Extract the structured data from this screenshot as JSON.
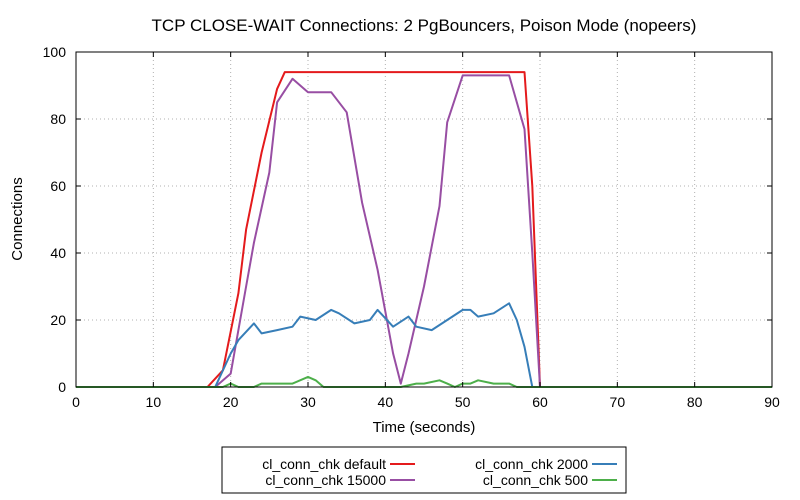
{
  "chart_data": {
    "type": "line",
    "title": "TCP CLOSE-WAIT Connections: 2 PgBouncers, Poison Mode (nopeers)",
    "xlabel": "Time (seconds)",
    "ylabel": "Connections",
    "xlim": [
      0,
      90
    ],
    "ylim": [
      0,
      100
    ],
    "xticks": [
      "0",
      "10",
      "20",
      "30",
      "40",
      "50",
      "60",
      "70",
      "80",
      "90"
    ],
    "yticks": [
      "0",
      "20",
      "40",
      "60",
      "80",
      "100"
    ],
    "grid": true,
    "legend_position": "bottom",
    "series": [
      {
        "name": "cl_conn_chk default",
        "color": "#e41a1c",
        "x": [
          0,
          17,
          19,
          21,
          22,
          24,
          26,
          27,
          58,
          59,
          60,
          90
        ],
        "y": [
          0,
          0,
          5,
          28,
          47,
          70,
          89,
          94,
          94,
          60,
          0,
          0
        ]
      },
      {
        "name": "cl_conn_chk 15000",
        "color": "#984ea3",
        "x": [
          0,
          18,
          20,
          22,
          23,
          25,
          26,
          28,
          30,
          33,
          35,
          37,
          39,
          41,
          42,
          43,
          45,
          47,
          48,
          50,
          56,
          58,
          59,
          60,
          90
        ],
        "y": [
          0,
          0,
          4,
          30,
          43,
          64,
          85,
          92,
          88,
          88,
          82,
          55,
          35,
          10,
          1,
          10,
          30,
          54,
          79,
          93,
          93,
          77,
          40,
          0,
          0
        ]
      },
      {
        "name": "cl_conn_chk 2000",
        "color": "#377eb8",
        "x": [
          0,
          18,
          20,
          21,
          23,
          24,
          26,
          28,
          29,
          31,
          33,
          34,
          36,
          38,
          39,
          41,
          43,
          44,
          46,
          48,
          50,
          51,
          52,
          54,
          56,
          57,
          58,
          59,
          90
        ],
        "y": [
          0,
          0,
          10,
          14,
          19,
          16,
          17,
          18,
          21,
          20,
          23,
          22,
          19,
          20,
          23,
          18,
          21,
          18,
          17,
          20,
          23,
          23,
          21,
          22,
          25,
          20,
          12,
          0,
          0
        ]
      },
      {
        "name": "cl_conn_chk 500",
        "color": "#4daf4a",
        "x": [
          0,
          19,
          20,
          21,
          23,
          24,
          26,
          28,
          30,
          31,
          32,
          33,
          42,
          44,
          45,
          47,
          48,
          49,
          50,
          51,
          52,
          54,
          56,
          57,
          90
        ],
        "y": [
          0,
          0,
          1,
          0,
          0,
          1,
          1,
          1,
          3,
          2,
          0,
          0,
          0,
          1,
          1,
          2,
          1,
          0,
          1,
          1,
          2,
          1,
          1,
          0,
          0
        ]
      }
    ]
  }
}
